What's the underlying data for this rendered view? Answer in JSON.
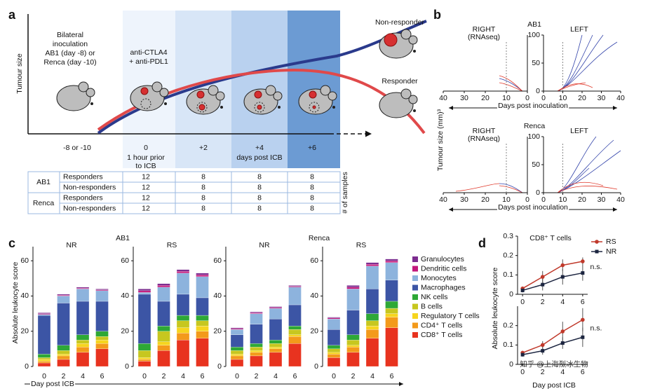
{
  "panel_labels": [
    "a",
    "b",
    "c",
    "d"
  ],
  "watermark": "知乎 @上海烈冰生物",
  "a": {
    "y_label": "Tumour size",
    "inoculation": [
      "Bilateral",
      "inoculation",
      "AB1 (day -8) or",
      "Renca (day -10)"
    ],
    "treatment": [
      "anti-CTLA4",
      "+ anti-PDL1"
    ],
    "non_responder": "Non-responder",
    "responder": "Responder",
    "timepoints": [
      "-8 or -10",
      "0",
      "+2",
      "+4",
      "+6"
    ],
    "note_day0": [
      "1 hour prior",
      "to ICB"
    ],
    "note_days": "days post ICB",
    "table": {
      "groups": [
        "AB1",
        "Renca"
      ],
      "side_label": "# of samples",
      "rows": [
        {
          "label": "Responders",
          "values": [
            12,
            8,
            8,
            8
          ]
        },
        {
          "label": "Non-responders",
          "values": [
            12,
            8,
            8,
            8
          ]
        },
        {
          "label": "Responders",
          "values": [
            12,
            8,
            8,
            8
          ]
        },
        {
          "label": "Non-responders",
          "values": [
            12,
            8,
            8,
            8
          ]
        }
      ]
    }
  },
  "b": {
    "y_label": "Tumour size (mm)³",
    "x_label": "Days post inoculation",
    "right_label": "RIGHT",
    "right_note": "(RNAseq)",
    "left_label": "LEFT",
    "plots": [
      {
        "title": "AB1"
      },
      {
        "title": "Renca"
      }
    ],
    "right_xlim": [
      40,
      0
    ],
    "right_xticks": [
      40,
      30,
      20,
      10,
      0
    ],
    "left_xlim": [
      0,
      40
    ],
    "left_xticks": [
      0,
      10,
      20,
      30,
      40
    ],
    "ylim": [
      0,
      100
    ],
    "yticks": [
      0,
      50,
      100
    ]
  },
  "c": {
    "type": "bar",
    "stacked": true,
    "y_label": "Absolute leukocyte score",
    "x_label": "Day post ICB",
    "ylim": [
      0,
      70
    ],
    "yticks": [
      0,
      20,
      40,
      60
    ],
    "categories": [
      0,
      2,
      4,
      6
    ],
    "models": [
      "AB1",
      "Renca"
    ],
    "groups": [
      {
        "title": "NR"
      },
      {
        "title": "RS"
      },
      {
        "title": "NR"
      },
      {
        "title": "RS"
      }
    ],
    "series": [
      {
        "name": "CD8⁺ T cells",
        "color": "#e8331f",
        "values": [
          [
            2,
            4,
            8,
            10
          ],
          [
            3,
            9,
            15,
            16
          ],
          [
            4,
            6,
            8,
            13
          ],
          [
            5,
            8,
            16,
            22
          ]
        ]
      },
      {
        "name": "CD4⁺ T cells",
        "color": "#f39a1b",
        "values": [
          [
            1,
            2,
            3,
            3
          ],
          [
            1,
            3,
            4,
            4
          ],
          [
            2,
            2,
            2,
            4
          ],
          [
            2,
            3,
            5,
            6
          ]
        ]
      },
      {
        "name": "Regulatory T cells",
        "color": "#f6d51f",
        "values": [
          [
            1,
            1,
            2,
            2
          ],
          [
            1,
            2,
            3,
            3
          ],
          [
            1,
            1,
            1,
            1
          ],
          [
            1,
            1,
            2,
            2
          ]
        ]
      },
      {
        "name": "B cells",
        "color": "#c7c71f",
        "values": [
          [
            1,
            2,
            2,
            2
          ],
          [
            4,
            6,
            4,
            3
          ],
          [
            2,
            2,
            2,
            3
          ],
          [
            2,
            3,
            3,
            3
          ]
        ]
      },
      {
        "name": "NK cells",
        "color": "#2ea836",
        "values": [
          [
            2,
            3,
            3,
            3
          ],
          [
            4,
            3,
            3,
            3
          ],
          [
            2,
            2,
            2,
            2
          ],
          [
            2,
            3,
            4,
            4
          ]
        ]
      },
      {
        "name": "Macrophages",
        "color": "#3c55a5",
        "values": [
          [
            22,
            24,
            19,
            17
          ],
          [
            28,
            14,
            12,
            10
          ],
          [
            7,
            11,
            12,
            12
          ],
          [
            9,
            14,
            14,
            12
          ]
        ]
      },
      {
        "name": "Monocytes",
        "color": "#8db3dd",
        "values": [
          [
            0.5,
            4,
            7,
            6
          ],
          [
            1,
            8,
            12,
            12
          ],
          [
            3,
            6,
            6,
            10
          ],
          [
            6,
            12,
            13,
            10
          ]
        ]
      },
      {
        "name": "Dendritic cells",
        "color": "#c2187b",
        "values": [
          [
            0.5,
            0.5,
            0.5,
            0.5
          ],
          [
            1,
            1,
            1,
            1
          ],
          [
            0.5,
            0.5,
            0.5,
            0.5
          ],
          [
            0.5,
            1,
            1,
            1
          ]
        ]
      },
      {
        "name": "Granulocytes",
        "color": "#7c2c8f",
        "values": [
          [
            0.5,
            0.5,
            0.5,
            0.5
          ],
          [
            1,
            1,
            1,
            1
          ],
          [
            0.5,
            0.5,
            0.5,
            0.5
          ],
          [
            0.5,
            1,
            1,
            1
          ]
        ]
      }
    ]
  },
  "d": {
    "type": "line",
    "title": "CD8⁺ T cells",
    "x_label": "Day post ICB",
    "y_label": "Absolute leukocyte score",
    "x": [
      0,
      2,
      4,
      6
    ],
    "xlim": [
      -0.5,
      6.5
    ],
    "xticks": [
      0,
      2,
      4,
      6
    ],
    "series_names": [
      "RS",
      "NR"
    ],
    "series_colors": [
      "#c0392b",
      "#1c2540"
    ],
    "plots": [
      {
        "ylim": [
          0,
          0.3
        ],
        "yticks": [
          0,
          0.1,
          0.2,
          0.3
        ],
        "values": [
          [
            0.03,
            0.09,
            0.15,
            0.17
          ],
          [
            0.02,
            0.05,
            0.09,
            0.11
          ]
        ],
        "errors": [
          [
            0.01,
            0.03,
            0.03,
            0.02
          ],
          [
            0.01,
            0.03,
            0.04,
            0.04
          ]
        ],
        "annotation": "n.s."
      },
      {
        "ylim": [
          0,
          0.3
        ],
        "yticks": [
          0,
          0.1,
          0.2
        ],
        "values": [
          [
            0.06,
            0.1,
            0.17,
            0.23
          ],
          [
            0.05,
            0.07,
            0.11,
            0.14
          ]
        ],
        "errors": [
          [
            0.01,
            0.02,
            0.05,
            0.06
          ],
          [
            0.01,
            0.02,
            0.03,
            0.05
          ]
        ],
        "annotation": "n.s."
      }
    ]
  }
}
